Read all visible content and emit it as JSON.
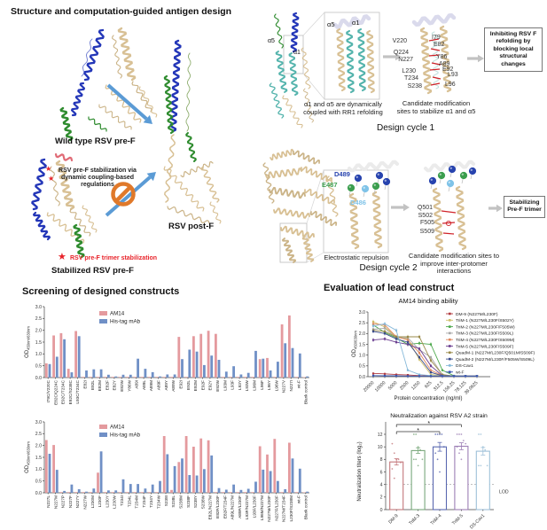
{
  "figure": {
    "panel_a_title": "Structure and computation-guided antigen design",
    "wild_type_label": "Wild type RSV pre-F",
    "post_f_label": "RSV post-F",
    "stabilized_label": "Stabilized RSV pre-F",
    "stabilization_note_1": "RSV pre-F stabilization via dynamic coupling-based regulations",
    "stabilization_note_2": "RSV pre-F trimer stabilization",
    "star": "★",
    "accent_blue_arrow": "#5b9bd5",
    "prohibition_orange": "#e0792a"
  },
  "design_cycle_1": {
    "label": "Design cycle 1",
    "alpha5": "α5",
    "alpha1": "α1",
    "zoom_caption": "α1 and α5 are dynamically coupled with RR1 refolding",
    "residues_left": [
      "V220",
      "Q224",
      "N227",
      "L230",
      "T234",
      "S238"
    ],
    "residues_right": [
      "I79",
      "E82",
      "Y86",
      "A89",
      "E92",
      "L93",
      "L96"
    ],
    "sites_caption": "Candidate modification sites to stabilize α1 and α5",
    "outcome": "Inhibiting RSV F refolding by blocking local structural changes"
  },
  "design_cycle_2": {
    "label": "Design cycle 2",
    "spheres": [
      {
        "label": "D489",
        "color": "#2743ae"
      },
      {
        "label": "E487",
        "color": "#3b9e4e"
      },
      {
        "label": "D486",
        "color": "#7fc3e8"
      }
    ],
    "zoom_caption": "Electrostatic repulsion",
    "residues": [
      "Q501",
      "S502",
      "F505",
      "S509"
    ],
    "sites_caption": "Candidate modification sites to improve inter-protomer interactions",
    "outcome": "Stabilizing Pre-F trimer"
  },
  "screening": {
    "title": "Screening of designed constructs"
  },
  "evaluation": {
    "title": "Evaluation of lead construct"
  },
  "chart_data": [
    {
      "id": "screening-top",
      "type": "bar",
      "ylabel": "OD450nm/630nm",
      "ylim": [
        0,
        3.0
      ],
      "yticks": [
        0.0,
        0.5,
        1.0,
        1.5,
        2.0,
        2.5,
        3.0
      ],
      "legend_position": "top-left-inside",
      "colors": [
        "#e49a9e",
        "#7090c6"
      ],
      "categories": [
        "I79C/V220C",
        "E82C/Q224C",
        "E92C/T234C",
        "E92C/S238C",
        "L93C/T234C",
        "E82I",
        "E82L",
        "E82M",
        "E82F",
        "E82Y",
        "E82W",
        "Y86W",
        "A89I",
        "A89L",
        "A89M",
        "A89F",
        "A89Y",
        "A89W",
        "E92I",
        "E92L",
        "E92M",
        "E92F",
        "E92Y",
        "E92W",
        "L93M",
        "L93F",
        "L93Y",
        "L93W",
        "L96M",
        "L96F",
        "L96Y",
        "L96W",
        "N227V",
        "N227I",
        "wt-F",
        "Blank control"
      ],
      "series": [
        {
          "name": "AM14",
          "values": [
            0.6,
            1.78,
            1.88,
            0.37,
            1.97,
            0.03,
            0.03,
            0.03,
            0.03,
            0.03,
            0.03,
            0.03,
            0.03,
            0.03,
            0.03,
            0.03,
            0.03,
            0.03,
            1.72,
            0.03,
            1.75,
            1.85,
            1.98,
            1.85,
            0.03,
            0.03,
            0.03,
            0.03,
            0.03,
            0.78,
            0.83,
            0.03,
            2.25,
            2.63,
            0.03,
            0.02
          ]
        },
        {
          "name": "His-tag mAb",
          "values": [
            0.57,
            0.88,
            1.62,
            0.22,
            1.75,
            0.3,
            0.35,
            0.35,
            0.12,
            0.05,
            0.12,
            0.12,
            0.8,
            0.37,
            0.23,
            0.05,
            0.13,
            0.13,
            0.78,
            1.18,
            1.1,
            0.53,
            0.93,
            0.75,
            0.25,
            0.48,
            0.13,
            0.2,
            1.13,
            0.8,
            0.3,
            0.67,
            1.45,
            1.25,
            1.02,
            0.05
          ]
        }
      ]
    },
    {
      "id": "screening-bottom",
      "type": "bar",
      "ylabel": "OD450nm/630nm",
      "ylim": [
        0,
        3.0
      ],
      "yticks": [
        0.0,
        0.5,
        1.0,
        1.5,
        2.0,
        2.5,
        3.0
      ],
      "legend_position": "top-left-inside",
      "colors": [
        "#e49a9e",
        "#7090c6"
      ],
      "categories": [
        "N227L",
        "N227M",
        "N227P",
        "N227F",
        "N227Y",
        "N227W",
        "L230M",
        "L230F",
        "L230Y",
        "L230W",
        "T234I",
        "T234L",
        "T234M",
        "T234F",
        "T234Y",
        "T234W",
        "S238I",
        "S238L",
        "S238M",
        "S238F",
        "S238Y",
        "S238W",
        "E82L/N227M",
        "E82F/L230F",
        "E82F/T234F",
        "A89L/N227M",
        "A89F/L230F",
        "L93F/N227M",
        "L93F/L230F",
        "L96M/N227M",
        "N227M/L230F",
        "N227F/L230F",
        "N227M/T234F",
        "L230F/S238M",
        "wt-F",
        "Blank control"
      ],
      "series": [
        {
          "name": "AM14",
          "values": [
            2.23,
            2.02,
            0.03,
            0.03,
            0.03,
            0.03,
            0.03,
            0.85,
            0.03,
            0.03,
            0.03,
            0.03,
            0.03,
            0.03,
            0.03,
            0.03,
            2.4,
            0.12,
            1.3,
            2.4,
            1.95,
            2.3,
            2.22,
            0.03,
            0.03,
            0.03,
            0.03,
            0.03,
            0.03,
            1.97,
            1.62,
            2.28,
            0.03,
            2.12,
            0.03,
            0.02
          ]
        },
        {
          "name": "His-tag mAb",
          "values": [
            1.65,
            0.97,
            0.08,
            0.35,
            0.15,
            0.05,
            0.18,
            1.75,
            0.1,
            0.1,
            0.57,
            0.37,
            0.37,
            0.18,
            0.35,
            0.5,
            1.63,
            1.13,
            1.45,
            0.75,
            0.73,
            1.0,
            1.58,
            0.2,
            0.13,
            0.35,
            0.12,
            0.17,
            0.47,
            0.98,
            0.92,
            0.5,
            0.15,
            1.45,
            1.02,
            0.05
          ]
        }
      ]
    },
    {
      "id": "binding",
      "type": "line",
      "title": "AM14 binding ability",
      "xlabel": "Protein concentration (ng/ml)",
      "ylabel": "OD450/630nm",
      "ylim": [
        0,
        3.0
      ],
      "yticks": [
        0.0,
        0.5,
        1.0,
        1.5,
        2.0,
        2.5,
        3.0
      ],
      "x": [
        "20000",
        "10000",
        "5000",
        "2500",
        "1250",
        "625",
        "312.5",
        "156.25",
        "78.125",
        "39.0625"
      ],
      "legend_position": "right",
      "series": [
        {
          "name": "DM-9 (N227M/L230F)",
          "color": "#b03a3f",
          "values": [
            0.15,
            0.13,
            0.1,
            0.08,
            0.05,
            0.04,
            0.03,
            0.03,
            0.03,
            0.03
          ]
        },
        {
          "name": "TriM-1 (N227M/L230F/S502Y)",
          "color": "#cfc06a",
          "values": [
            2.55,
            2.3,
            1.85,
            1.75,
            0.8,
            0.1,
            0.04,
            0.03,
            0.03,
            0.03
          ]
        },
        {
          "name": "TriM-2 (N227M/L230F/F505W)",
          "color": "#4ba84b",
          "values": [
            2.4,
            2.05,
            1.8,
            1.5,
            1.55,
            1.5,
            0.3,
            0.04,
            0.03,
            0.03
          ]
        },
        {
          "name": "TriM-3 (N227M/L230F/S509L)",
          "color": "#a8a8a8",
          "values": [
            2.2,
            2.25,
            1.8,
            1.8,
            1.25,
            0.9,
            0.08,
            0.03,
            0.03,
            0.03
          ]
        },
        {
          "name": "TriM-4 (N227M/L230F/S509M)",
          "color": "#e0885f",
          "values": [
            2.45,
            2.4,
            1.85,
            1.7,
            1.1,
            0.3,
            0.05,
            0.03,
            0.03,
            0.03
          ]
        },
        {
          "name": "TriM-5 (N227M/L230F/S509F)",
          "color": "#6a3d8f",
          "values": [
            1.7,
            1.75,
            1.6,
            1.5,
            1.3,
            0.5,
            0.05,
            0.03,
            0.03,
            0.03
          ]
        },
        {
          "name": "QuadM-1 (N227M/L230F/Q501M/S509F)",
          "color": "#9a8a4a",
          "values": [
            2.15,
            2.1,
            1.85,
            1.85,
            1.85,
            0.75,
            0.1,
            0.03,
            0.03,
            0.03
          ]
        },
        {
          "name": "QuadM-2 (N227M/L230F/F505W/S509L)",
          "color": "#3a4a8a",
          "values": [
            2.1,
            2.0,
            1.75,
            1.6,
            0.9,
            0.2,
            0.04,
            0.03,
            0.03,
            0.03
          ]
        },
        {
          "name": "DS-Cav1",
          "color": "#85b8d9",
          "values": [
            2.35,
            2.45,
            2.15,
            0.3,
            0.1,
            0.05,
            0.03,
            0.03,
            0.03,
            0.03
          ]
        },
        {
          "name": "wt-F",
          "color": "#3a55b0",
          "values": [
            0.05,
            0.04,
            0.04,
            0.03,
            0.03,
            0.03,
            0.03,
            0.03,
            0.03,
            0.03
          ]
        }
      ]
    },
    {
      "id": "neutralization",
      "type": "bar",
      "title": "Neutralization against RSV A2 strain",
      "ylabel": "Neutralization titers (log₂)",
      "ylim": [
        0,
        12
      ],
      "yticks": [
        0,
        2,
        4,
        6,
        8,
        10,
        12
      ],
      "categories": [
        "DM-9",
        "TriM-3",
        "TriM-4",
        "TriM-5",
        "DS-Cav1"
      ],
      "values": [
        7.6,
        9.4,
        10.0,
        10.1,
        9.3
      ],
      "errors": [
        0.5,
        0.45,
        0.7,
        0.55,
        0.6
      ],
      "bar_colors": [
        "#c4777b",
        "#7aa87c",
        "#5a68b0",
        "#9d7fb5",
        "#9ec0d8"
      ],
      "scatter": [
        [
          10.5,
          9.0,
          8.0,
          8.0,
          7.5,
          6.5,
          5.0
        ],
        [
          12,
          12,
          10,
          9.5,
          8,
          8,
          8,
          7
        ],
        [
          12,
          12,
          12,
          12,
          10,
          9,
          8,
          6
        ],
        [
          12,
          12,
          12,
          11,
          10.5,
          10,
          9,
          8
        ],
        [
          12,
          12,
          10,
          9.5,
          7,
          7,
          7
        ]
      ],
      "lod": {
        "value": 4,
        "label": "LOD"
      },
      "significance": [
        {
          "from": 0,
          "to": 2,
          "label": "*"
        },
        {
          "from": 0,
          "to": 3,
          "label": "*"
        }
      ]
    }
  ]
}
